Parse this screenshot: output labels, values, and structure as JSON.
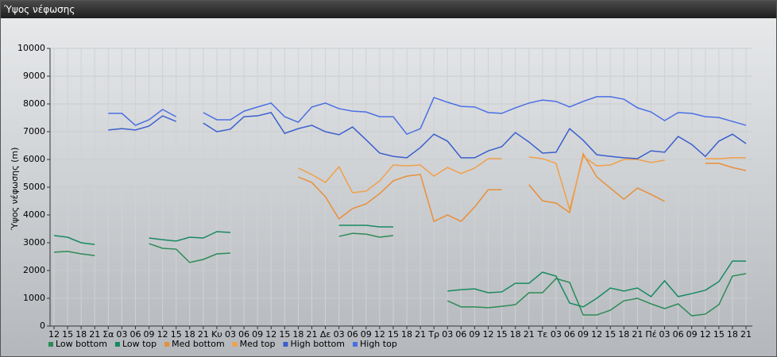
{
  "window_title": "Ύψος νέφωσης",
  "chart_data": {
    "type": "line",
    "y_label": "Ύψος νέφωσης (m)",
    "categories": [
      "12",
      "15",
      "18",
      "21",
      "Σα",
      "03",
      "06",
      "09",
      "12",
      "15",
      "18",
      "21",
      "Κυ",
      "03",
      "06",
      "09",
      "12",
      "15",
      "18",
      "21",
      "Δε",
      "03",
      "06",
      "09",
      "12",
      "15",
      "18",
      "21",
      "Τρ",
      "03",
      "06",
      "09",
      "12",
      "15",
      "18",
      "21",
      "Τε",
      "03",
      "06",
      "09",
      "12",
      "15",
      "18",
      "21",
      "Πέ",
      "03",
      "06",
      "09",
      "12",
      "15",
      "18",
      "21"
    ],
    "ylim": [
      0,
      10000
    ],
    "yticks": [
      0,
      1000,
      2000,
      3000,
      4000,
      5000,
      6000,
      7000,
      8000,
      9000,
      10000
    ],
    "grid": true,
    "series": [
      {
        "name": "Low bottom",
        "color": "#2e8b57",
        "values": [
          2660,
          2690,
          2600,
          2540,
          null,
          null,
          null,
          2970,
          2800,
          2770,
          2290,
          2400,
          2600,
          2630,
          null,
          null,
          null,
          null,
          null,
          null,
          null,
          3230,
          3340,
          3310,
          3200,
          3260,
          null,
          null,
          null,
          910,
          690,
          690,
          660,
          710,
          770,
          1200,
          1200,
          1710,
          1570,
          400,
          400,
          570,
          910,
          1000,
          800,
          630,
          800,
          370,
          430,
          770,
          1800,
          1890
        ]
      },
      {
        "name": "Low top",
        "color": "#178a5f",
        "values": [
          3260,
          3200,
          3000,
          2940,
          null,
          null,
          null,
          3170,
          3110,
          3060,
          3200,
          3170,
          3400,
          3370,
          null,
          null,
          null,
          null,
          null,
          null,
          null,
          3630,
          3630,
          3630,
          3570,
          3570,
          null,
          null,
          null,
          1260,
          1310,
          1340,
          1200,
          1230,
          1540,
          1540,
          1940,
          1800,
          830,
          690,
          1000,
          1370,
          1260,
          1370,
          1060,
          1630,
          1060,
          1170,
          1290,
          1600,
          2340,
          2340
        ]
      },
      {
        "name": "Med bottom",
        "color": "#e88f3a",
        "values": [
          null,
          null,
          null,
          null,
          null,
          null,
          null,
          null,
          null,
          null,
          null,
          null,
          null,
          null,
          null,
          null,
          null,
          null,
          5370,
          5170,
          4660,
          3860,
          4230,
          4400,
          4770,
          5230,
          5400,
          5460,
          3770,
          4000,
          3770,
          4290,
          4910,
          4910,
          null,
          5090,
          4510,
          4430,
          4090,
          6200,
          5370,
          4970,
          4570,
          4970,
          4740,
          4490,
          null,
          null,
          5860,
          5860,
          5710,
          5600
        ]
      },
      {
        "name": "Med top",
        "color": "#f0a04a",
        "values": [
          null,
          null,
          null,
          null,
          null,
          null,
          null,
          null,
          null,
          null,
          null,
          null,
          null,
          null,
          null,
          null,
          null,
          null,
          5690,
          5460,
          5170,
          5740,
          4800,
          4860,
          5230,
          5800,
          5770,
          5800,
          5400,
          5710,
          5490,
          5690,
          6030,
          6030,
          null,
          6090,
          6030,
          5860,
          4200,
          6110,
          5770,
          5800,
          6000,
          6000,
          5890,
          5970,
          null,
          null,
          6030,
          6030,
          6060,
          6060
        ]
      },
      {
        "name": "High bottom",
        "color": "#3a5fcd",
        "values": [
          null,
          null,
          null,
          null,
          7060,
          7110,
          7060,
          7200,
          7570,
          7370,
          null,
          7310,
          7000,
          7090,
          7540,
          7570,
          7690,
          6940,
          7110,
          7230,
          7000,
          6890,
          7170,
          6710,
          6230,
          6110,
          6060,
          6430,
          6910,
          6660,
          6060,
          6060,
          6310,
          6460,
          6970,
          6630,
          6230,
          6260,
          7110,
          6690,
          6170,
          6110,
          6060,
          6030,
          6310,
          6260,
          6830,
          6540,
          6110,
          6660,
          6910,
          6570
        ]
      },
      {
        "name": "High top",
        "color": "#4a6fe3",
        "values": [
          null,
          null,
          null,
          null,
          7660,
          7660,
          7230,
          7430,
          7800,
          7540,
          null,
          7690,
          7430,
          7430,
          7740,
          7890,
          8030,
          7540,
          7340,
          7890,
          8030,
          7830,
          7740,
          7710,
          7540,
          7540,
          6910,
          7110,
          8230,
          8060,
          7910,
          7890,
          7690,
          7660,
          7860,
          8030,
          8140,
          8090,
          7890,
          8090,
          8260,
          8260,
          8170,
          7860,
          7710,
          7400,
          7690,
          7660,
          7540,
          7510,
          7370,
          7230
        ]
      }
    ]
  }
}
